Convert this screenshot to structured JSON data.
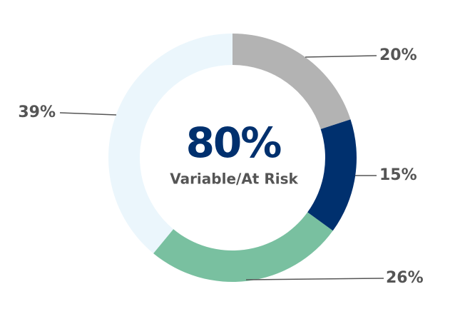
{
  "chart_data": {
    "type": "donut",
    "values": [
      20,
      15,
      26,
      39
    ],
    "value_labels": [
      "20%",
      "15%",
      "26%",
      "39%"
    ],
    "colors": [
      "#b3b3b3",
      "#00306e",
      "#79c0a0",
      "#ebf6fc"
    ],
    "center_title": "80%",
    "center_subtitle": "Variable/At Risk"
  }
}
